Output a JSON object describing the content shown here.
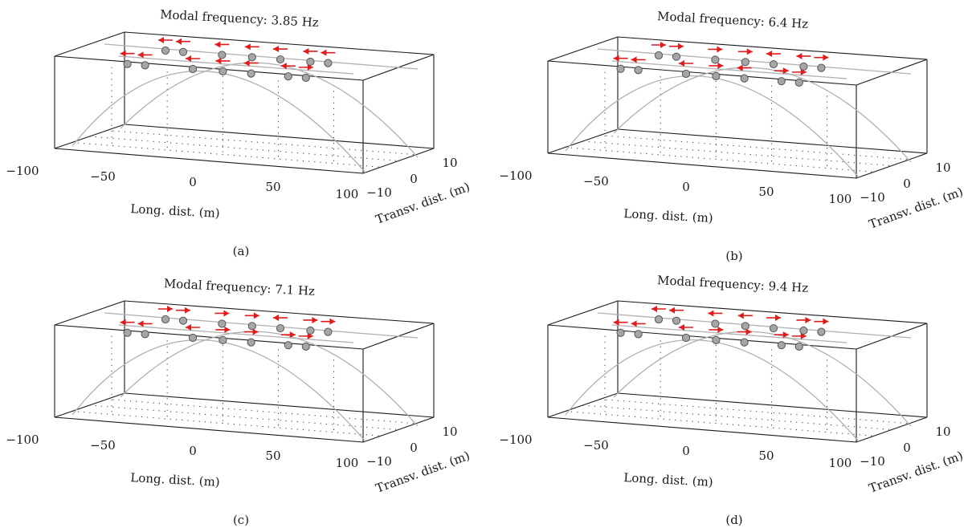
{
  "chart_data": [
    {
      "type": "scatter",
      "panel": "(a)",
      "title": "Modal frequency: 3.85 Hz",
      "xlabel": "Long. dist. (m)",
      "ylabel": "Transv. dist. (m)",
      "xticks": [
        "-100",
        "-50",
        "0",
        "50",
        "100"
      ],
      "yticks": [
        "-10",
        "0",
        "10"
      ],
      "xlim": [
        -100,
        100
      ],
      "ylim": [
        -10,
        10
      ],
      "grid": "dotted",
      "nodes": {
        "near_x": [
          -72,
          -52,
          2,
          36,
          68,
          110,
          130
        ],
        "far_x": [
          -46,
          -26,
          18,
          52,
          84,
          118,
          138
        ]
      },
      "mode_shape": {
        "near": [
          "L",
          "L",
          "L",
          "L",
          "L",
          "L",
          "R"
        ],
        "far": [
          "L",
          "L",
          "L",
          "L",
          "L",
          "L",
          "L"
        ]
      }
    },
    {
      "type": "scatter",
      "panel": "(b)",
      "title": "Modal frequency: 6.4 Hz",
      "xlabel": "Long. dist. (m)",
      "ylabel": "Transv. dist. (m)",
      "xticks": [
        "-100",
        "-50",
        "0",
        "50",
        "100"
      ],
      "yticks": [
        "-10",
        "0",
        "10"
      ],
      "xlim": [
        -100,
        100
      ],
      "ylim": [
        -10,
        10
      ],
      "grid": "dotted",
      "nodes": {
        "near_x": [
          -72,
          -52,
          2,
          36,
          68,
          110,
          130
        ],
        "far_x": [
          -46,
          -26,
          18,
          52,
          84,
          118,
          138
        ]
      },
      "mode_shape": {
        "near": [
          "L",
          "L",
          "L",
          "R",
          "L",
          "R",
          "R"
        ],
        "far": [
          "R",
          "R",
          "R",
          "R",
          "L",
          "L",
          "R"
        ]
      }
    },
    {
      "type": "scatter",
      "panel": "(c)",
      "title": "Modal frequency: 7.1 Hz",
      "xlabel": "Long. dist. (m)",
      "ylabel": "Transv. dist. (m)",
      "xticks": [
        "-100",
        "-50",
        "0",
        "50",
        "100"
      ],
      "yticks": [
        "-10",
        "0",
        "10"
      ],
      "xlim": [
        -100,
        100
      ],
      "ylim": [
        -10,
        10
      ],
      "grid": "dotted",
      "nodes": {
        "near_x": [
          -72,
          -52,
          2,
          36,
          68,
          110,
          130
        ],
        "far_x": [
          -46,
          -26,
          18,
          52,
          84,
          118,
          138
        ]
      },
      "mode_shape": {
        "near": [
          "L",
          "L",
          "L",
          "R",
          "R",
          "R",
          "R"
        ],
        "far": [
          "R",
          "R",
          "R",
          "R",
          "L",
          "R",
          "R"
        ]
      }
    },
    {
      "type": "scatter",
      "panel": "(d)",
      "title": "Modal frequency: 9.4 Hz",
      "xlabel": "Long. dist. (m)",
      "ylabel": "Transv. dist. (m)",
      "xticks": [
        "-100",
        "-50",
        "0",
        "50",
        "100"
      ],
      "yticks": [
        "-10",
        "0",
        "10"
      ],
      "xlim": [
        -100,
        100
      ],
      "ylim": [
        -10,
        10
      ],
      "grid": "dotted",
      "nodes": {
        "near_x": [
          -72,
          -52,
          2,
          36,
          68,
          110,
          130
        ],
        "far_x": [
          -46,
          -26,
          18,
          52,
          84,
          118,
          138
        ]
      },
      "mode_shape": {
        "near": [
          "L",
          "L",
          "L",
          "R",
          "R",
          "R",
          "R"
        ],
        "far": [
          "L",
          "L",
          "L",
          "L",
          "R",
          "R",
          "R"
        ]
      }
    }
  ],
  "colors": {
    "frame": "#1a1a1a",
    "bridge_line": "#b0b0b0",
    "node_fill": "#a6a6a6",
    "node_stroke": "#555555",
    "arrow": "#e01b1b",
    "grid_dot": "#333333"
  }
}
